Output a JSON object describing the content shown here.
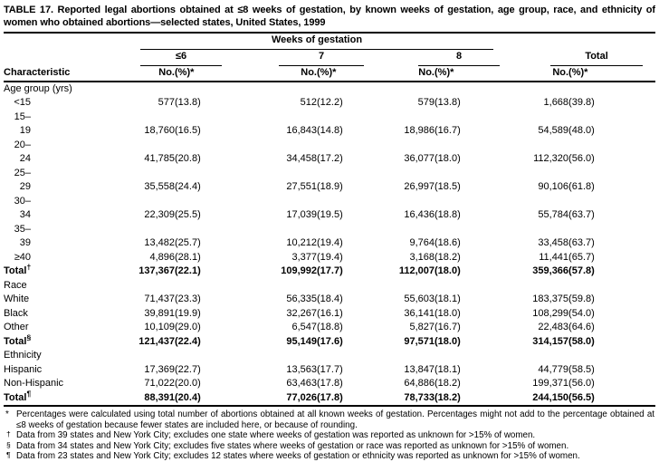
{
  "title": "TABLE 17. Reported legal abortions obtained at ≤8 weeks of gestation, by known weeks of gestation, age group, race, and ethnicity of women who obtained abortions—selected states, United States, 1999",
  "table": {
    "weeks_header": "Weeks of gestation",
    "characteristic_header": "Characteristic",
    "groups": [
      {
        "label": "≤6",
        "no": "No.",
        "pct": "(%)*"
      },
      {
        "label": "7",
        "no": "No.",
        "pct": "(%)*"
      },
      {
        "label": "8",
        "no": "No.",
        "pct": "(%)*"
      },
      {
        "label": "Total",
        "no": "No.",
        "pct": "(%)*"
      }
    ],
    "rows": [
      {
        "type": "section",
        "label": "Age group (yrs)"
      },
      {
        "type": "data",
        "label": "<15",
        "range": true,
        "cells": [
          "577",
          "(13.8)",
          "512",
          "(12.2)",
          "579",
          "(13.8)",
          "1,668",
          "(39.8)"
        ]
      },
      {
        "type": "data",
        "label": "15–19",
        "range": true,
        "cells": [
          "18,760",
          "(16.5)",
          "16,843",
          "(14.8)",
          "18,986",
          "(16.7)",
          "54,589",
          "(48.0)"
        ]
      },
      {
        "type": "data",
        "label": "20–24",
        "range": true,
        "cells": [
          "41,785",
          "(20.8)",
          "34,458",
          "(17.2)",
          "36,077",
          "(18.0)",
          "112,320",
          "(56.0)"
        ]
      },
      {
        "type": "data",
        "label": "25–29",
        "range": true,
        "cells": [
          "35,558",
          "(24.4)",
          "27,551",
          "(18.9)",
          "26,997",
          "(18.5)",
          "90,106",
          "(61.8)"
        ]
      },
      {
        "type": "data",
        "label": "30–34",
        "range": true,
        "cells": [
          "22,309",
          "(25.5)",
          "17,039",
          "(19.5)",
          "16,436",
          "(18.8)",
          "55,784",
          "(63.7)"
        ]
      },
      {
        "type": "data",
        "label": "35–39",
        "range": true,
        "cells": [
          "13,482",
          "(25.7)",
          "10,212",
          "(19.4)",
          "9,764",
          "(18.6)",
          "33,458",
          "(63.7)"
        ]
      },
      {
        "type": "data",
        "label": "≥40",
        "range": true,
        "cells": [
          "4,896",
          "(28.1)",
          "3,377",
          "(19.4)",
          "3,168",
          "(18.2)",
          "11,441",
          "(65.7)"
        ]
      },
      {
        "type": "total",
        "label": "Total",
        "sup": "†",
        "cells": [
          "137,367",
          "(22.1)",
          "109,992",
          "(17.7)",
          "112,007",
          "(18.0)",
          "359,366",
          "(57.8)"
        ]
      },
      {
        "type": "section",
        "label": "Race"
      },
      {
        "type": "data",
        "label": "White",
        "cells": [
          "71,437",
          "(23.3)",
          "56,335",
          "(18.4)",
          "55,603",
          "(18.1)",
          "183,375",
          "(59.8)"
        ]
      },
      {
        "type": "data",
        "label": "Black",
        "cells": [
          "39,891",
          "(19.9)",
          "32,267",
          "(16.1)",
          "36,141",
          "(18.0)",
          "108,299",
          "(54.0)"
        ]
      },
      {
        "type": "data",
        "label": "Other",
        "cells": [
          "10,109",
          "(29.0)",
          "6,547",
          "(18.8)",
          "5,827",
          "(16.7)",
          "22,483",
          "(64.6)"
        ]
      },
      {
        "type": "total",
        "label": "Total",
        "sup": "§",
        "cells": [
          "121,437",
          "(22.4)",
          "95,149",
          "(17.6)",
          "97,571",
          "(18.0)",
          "314,157",
          "(58.0)"
        ]
      },
      {
        "type": "section",
        "label": "Ethnicity"
      },
      {
        "type": "data",
        "label": "Hispanic",
        "cells": [
          "17,369",
          "(22.7)",
          "13,563",
          "(17.7)",
          "13,847",
          "(18.1)",
          "44,779",
          "(58.5)"
        ]
      },
      {
        "type": "data",
        "label": "Non-Hispanic",
        "cells": [
          "71,022",
          "(20.0)",
          "63,463",
          "(17.8)",
          "64,886",
          "(18.2)",
          "199,371",
          "(56.0)"
        ]
      },
      {
        "type": "total",
        "label": "Total",
        "sup": "¶",
        "cells": [
          "88,391",
          "(20.4)",
          "77,026",
          "(17.8)",
          "78,733",
          "(18.2)",
          "244,150",
          "(56.5)"
        ]
      }
    ]
  },
  "footnotes": [
    {
      "marker": "*",
      "sup": false,
      "text": "Percentages were calculated using total number of abortions obtained at all known weeks of gestation. Percentages might not add to the percentage obtained at ≤8 weeks of gestation because fewer states are included here, or because of rounding."
    },
    {
      "marker": "†",
      "sup": true,
      "text": "Data from 39 states and New York City; excludes one state where weeks of gestation was reported as unknown for >15% of women."
    },
    {
      "marker": "§",
      "sup": true,
      "text": "Data from 34 states and New York City; excludes five states where weeks of gestation or race was reported as unknown for >15% of women."
    },
    {
      "marker": "¶",
      "sup": true,
      "text": "Data from 23 states and New York City; excludes 12 states where weeks of gestation or ethnicity was reported as unknown for >15% of women."
    }
  ]
}
